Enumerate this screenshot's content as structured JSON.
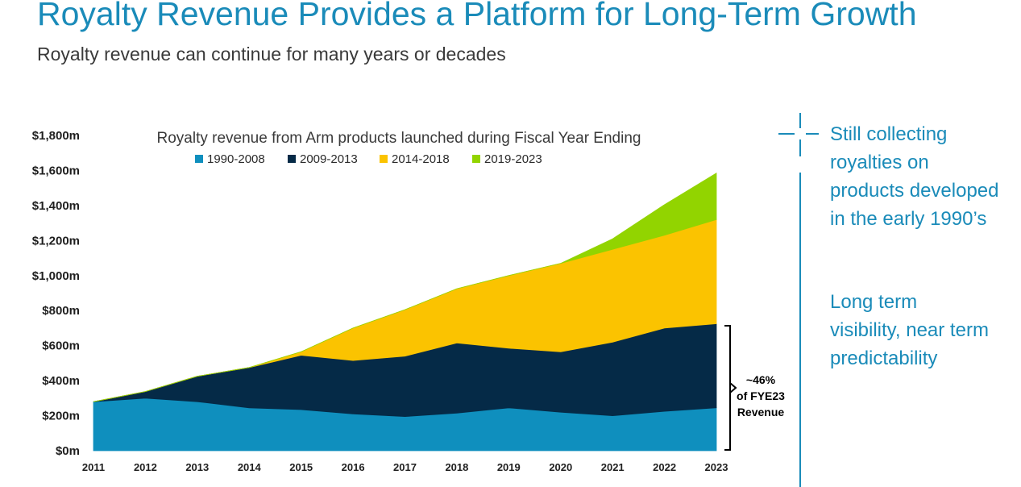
{
  "header": {
    "title": "Royalty Revenue Provides a Platform for Long-Term Growth",
    "subtitle": "Royalty revenue can continue for many years or decades"
  },
  "chart_data": {
    "type": "area",
    "stacked": true,
    "title": "Royalty revenue from Arm products launched during Fiscal Year Ending",
    "xlabel": "",
    "ylabel": "",
    "x": [
      "2011",
      "2012",
      "2013",
      "2014",
      "2015",
      "2016",
      "2017",
      "2018",
      "2019",
      "2020",
      "2021",
      "2022",
      "2023"
    ],
    "ylim": [
      0,
      1800
    ],
    "yticks": [
      0,
      200,
      400,
      600,
      800,
      1000,
      1200,
      1400,
      1600,
      1800
    ],
    "ytick_labels": [
      "$0m",
      "$200m",
      "$400m",
      "$600m",
      "$800m",
      "$1,000m",
      "$1,200m",
      "$1,400m",
      "$1,600m",
      "$1,800m"
    ],
    "grid": false,
    "legend_position": "top",
    "series": [
      {
        "name": "1990-2008",
        "color": "#0f8fbe",
        "values": [
          280,
          300,
          280,
          245,
          235,
          210,
          195,
          215,
          245,
          220,
          200,
          225,
          245
        ]
      },
      {
        "name": "2009-2013",
        "color": "#052a47",
        "values": [
          0,
          38,
          145,
          230,
          310,
          305,
          345,
          400,
          340,
          345,
          420,
          475,
          480
        ]
      },
      {
        "name": "2014-2018",
        "color": "#fbc300",
        "values": [
          0,
          0,
          0,
          0,
          20,
          185,
          265,
          310,
          415,
          505,
          530,
          530,
          595
        ]
      },
      {
        "name": "2019-2023",
        "color": "#92d400",
        "values": [
          0,
          0,
          0,
          0,
          0,
          0,
          0,
          0,
          0,
          0,
          60,
          175,
          265
        ]
      }
    ],
    "annotation": {
      "lines": [
        "~46%",
        "of FYE23",
        "Revenue"
      ]
    }
  },
  "side": {
    "points": [
      {
        "lines": [
          "Still collecting",
          "royalties on",
          "products developed",
          "in the early 1990’s"
        ]
      },
      {
        "lines": [
          "Long term",
          "visibility, near term",
          "predictability"
        ]
      }
    ],
    "accent_color": "#1a8bb9"
  }
}
